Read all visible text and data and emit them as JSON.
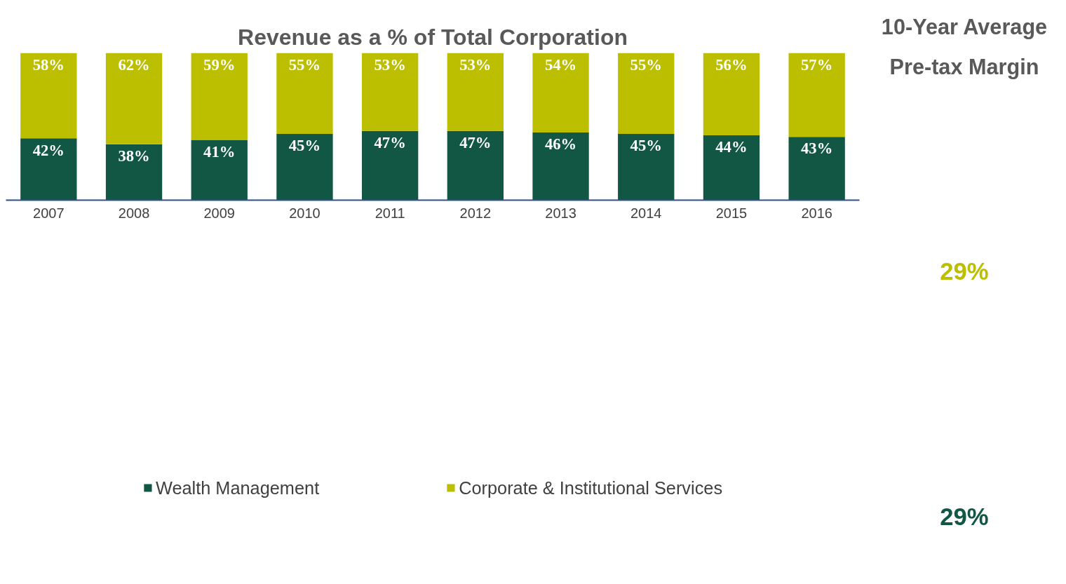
{
  "chart_data": {
    "type": "bar",
    "title": "Revenue as a % of Total Corporation",
    "stacked": true,
    "legend": "bottom",
    "grid": false,
    "categories": [
      "2007",
      "2008",
      "2009",
      "2010",
      "2011",
      "2012",
      "2013",
      "2014",
      "2015",
      "2016"
    ],
    "series": [
      {
        "name": "Wealth Management",
        "color": "#115744",
        "values": [
          42,
          38,
          41,
          45,
          47,
          47,
          46,
          45,
          44,
          43
        ],
        "value_labels": [
          "42%",
          "38%",
          "41%",
          "45%",
          "47%",
          "47%",
          "46%",
          "45%",
          "44%",
          "43%"
        ]
      },
      {
        "name": "Corporate & Institutional Services",
        "color": "#bbbf00",
        "values": [
          58,
          62,
          59,
          55,
          53,
          53,
          54,
          55,
          56,
          57
        ],
        "value_labels": [
          "58%",
          "62%",
          "59%",
          "55%",
          "53%",
          "53%",
          "54%",
          "55%",
          "56%",
          "57%"
        ]
      }
    ],
    "annotations": [
      "10-Year Average Pre-tax Margin",
      "29%",
      "29%"
    ]
  }
}
